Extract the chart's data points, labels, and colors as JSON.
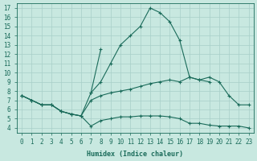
{
  "xlabel": "Humidex (Indice chaleur)",
  "xlim": [
    -0.5,
    23.5
  ],
  "ylim": [
    3.5,
    17.5
  ],
  "xticks": [
    0,
    1,
    2,
    3,
    4,
    5,
    6,
    7,
    8,
    9,
    10,
    11,
    12,
    13,
    14,
    15,
    16,
    17,
    18,
    19,
    20,
    21,
    22,
    23
  ],
  "yticks": [
    4,
    5,
    6,
    7,
    8,
    9,
    10,
    11,
    12,
    13,
    14,
    15,
    16,
    17
  ],
  "bg_color": "#c8e8e0",
  "line_color": "#1a6b5a",
  "grid_color": "#a8cfc8",
  "line1_x": [
    0,
    1,
    2,
    3,
    4,
    5,
    6,
    7,
    8,
    9,
    10,
    11,
    12,
    13,
    14,
    15,
    16,
    17,
    18,
    19
  ],
  "line1_y": [
    7.5,
    7.0,
    6.5,
    6.5,
    5.8,
    5.5,
    5.3,
    7.8,
    9.0,
    11.0,
    13.0,
    14.0,
    15.0,
    17.0,
    16.5,
    15.5,
    13.5,
    9.5,
    9.2,
    9.0
  ],
  "line2_x": [
    0,
    1,
    2,
    3,
    4,
    5,
    6,
    7,
    8,
    9,
    10,
    11,
    12,
    13,
    14,
    15,
    16,
    17,
    18,
    19,
    20,
    21,
    22,
    23
  ],
  "line2_y": [
    7.5,
    7.0,
    6.5,
    6.5,
    5.8,
    5.5,
    5.3,
    7.0,
    7.5,
    7.8,
    8.0,
    8.2,
    8.5,
    8.8,
    9.0,
    9.2,
    9.0,
    9.5,
    9.2,
    9.5,
    9.0,
    7.5,
    6.5,
    6.5
  ],
  "line3_x": [
    0,
    1,
    2,
    3,
    4,
    5,
    6,
    7,
    8,
    9,
    10,
    11,
    12,
    13,
    14,
    15,
    16,
    17,
    18,
    19,
    20,
    21,
    22,
    23
  ],
  "line3_y": [
    7.5,
    7.0,
    6.5,
    6.5,
    5.8,
    5.5,
    5.3,
    4.2,
    4.8,
    5.0,
    5.2,
    5.2,
    5.3,
    5.3,
    5.3,
    5.2,
    5.0,
    4.5,
    4.5,
    4.3,
    4.2,
    4.2,
    4.2,
    4.0
  ],
  "line4_x": [
    7,
    8
  ],
  "line4_y": [
    7.8,
    12.5
  ]
}
